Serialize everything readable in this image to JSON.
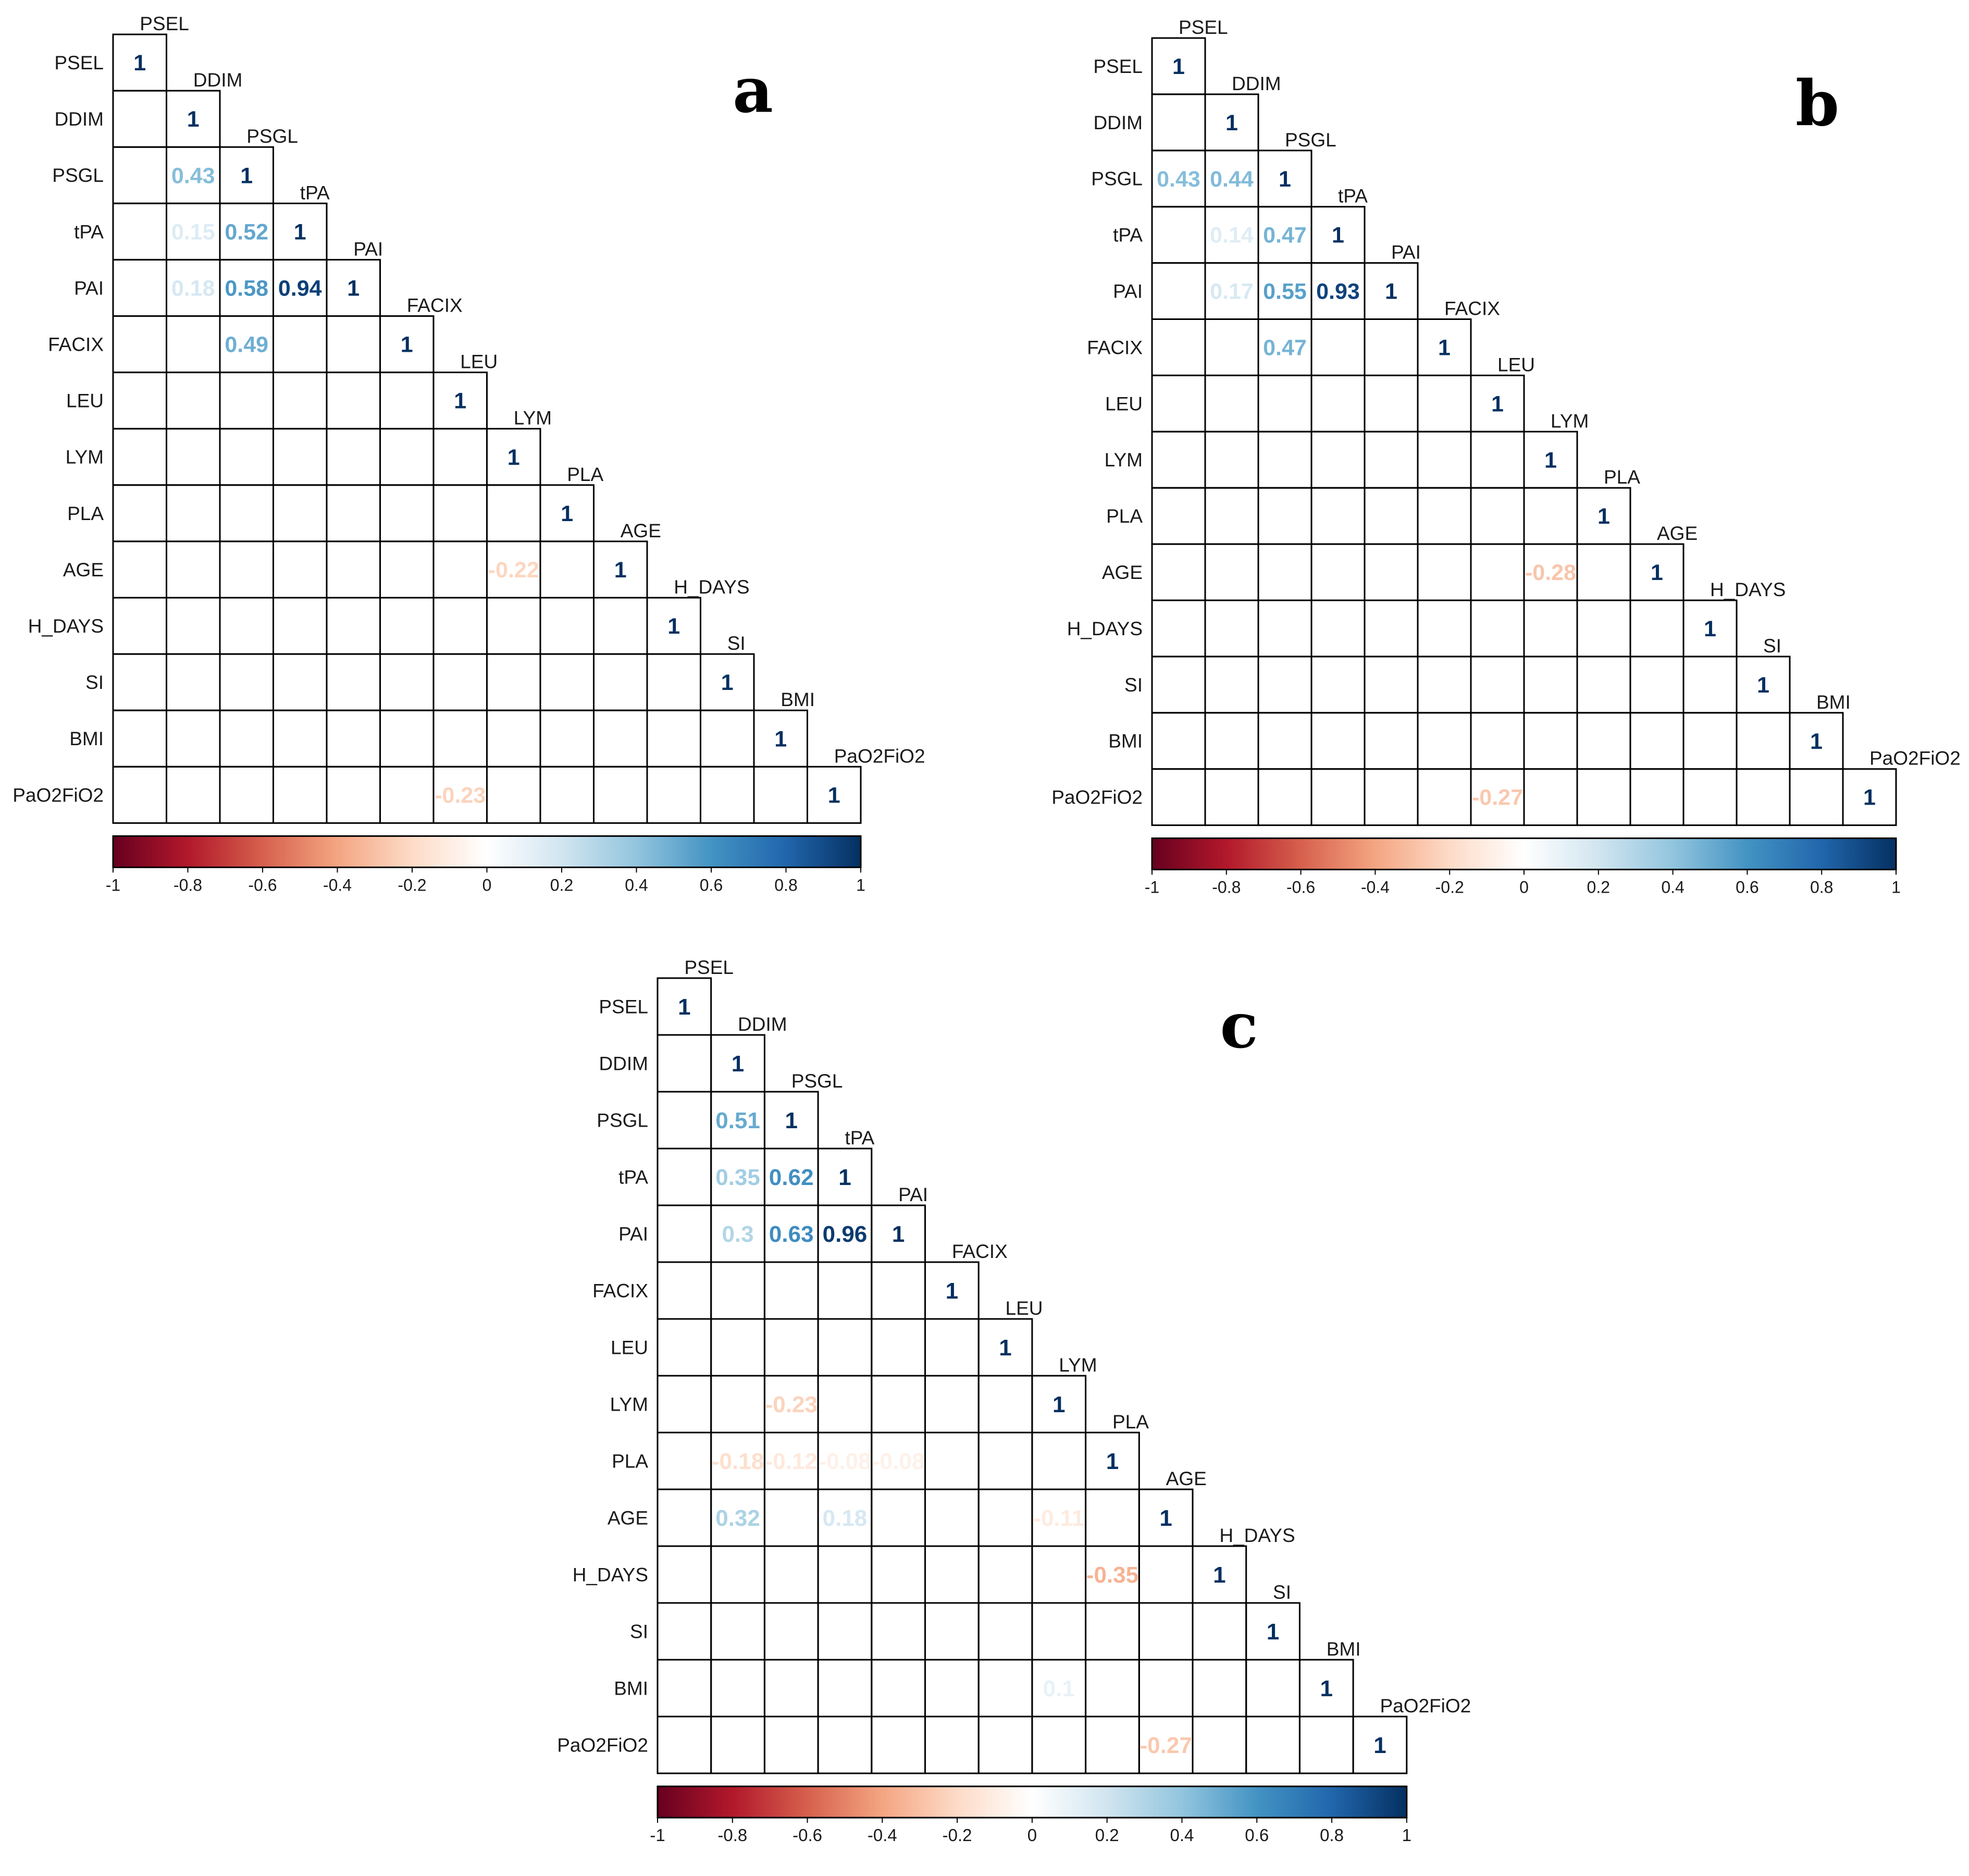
{
  "figure": {
    "description_free": true
  },
  "colors": {
    "neg_strong": "#67001f",
    "neg_mid": "#d6604d",
    "neg_light": "#fddbc7",
    "zero": "#ffffff",
    "pos_light": "#d1e5f0",
    "pos_mid": "#4393c3",
    "pos_strong": "#053061",
    "grid": "#000000"
  },
  "chart_data": [
    {
      "type": "heatmap",
      "panel": "a",
      "variables": [
        "PSEL",
        "DDIM",
        "PSGL",
        "tPA",
        "PAI",
        "FACIX",
        "LEU",
        "LYM",
        "PLA",
        "AGE",
        "H_DAYS",
        "SI",
        "BMI",
        "PaO2FiO2"
      ],
      "shown_cells": [
        {
          "row": "PSGL",
          "col": "DDIM",
          "value": 0.43,
          "label": "0.43"
        },
        {
          "row": "tPA",
          "col": "DDIM",
          "value": 0.15,
          "label": "0.15"
        },
        {
          "row": "tPA",
          "col": "PSGL",
          "value": 0.52,
          "label": "0.52"
        },
        {
          "row": "PAI",
          "col": "DDIM",
          "value": 0.18,
          "label": "0.18"
        },
        {
          "row": "PAI",
          "col": "PSGL",
          "value": 0.58,
          "label": "0.58"
        },
        {
          "row": "PAI",
          "col": "tPA",
          "value": 0.94,
          "label": "0.94"
        },
        {
          "row": "FACIX",
          "col": "PSGL",
          "value": 0.49,
          "label": "0.49"
        },
        {
          "row": "AGE",
          "col": "LYM",
          "value": -0.22,
          "label": "-0.22"
        },
        {
          "row": "PaO2FiO2",
          "col": "LEU",
          "value": -0.23,
          "label": "-0.23"
        }
      ],
      "diagonal_label": "1",
      "colorbar": {
        "range": [
          -1,
          1
        ],
        "ticks": [
          "-1",
          "-0.8",
          "-0.6",
          "-0.4",
          "-0.2",
          "0",
          "0.2",
          "0.4",
          "0.6",
          "0.8",
          "1"
        ]
      }
    },
    {
      "type": "heatmap",
      "panel": "b",
      "variables": [
        "PSEL",
        "DDIM",
        "PSGL",
        "tPA",
        "PAI",
        "FACIX",
        "LEU",
        "LYM",
        "PLA",
        "AGE",
        "H_DAYS",
        "SI",
        "BMI",
        "PaO2FiO2"
      ],
      "shown_cells": [
        {
          "row": "PSGL",
          "col": "PSEL",
          "value": 0.43,
          "label": "0.43"
        },
        {
          "row": "PSGL",
          "col": "DDIM",
          "value": 0.44,
          "label": "0.44"
        },
        {
          "row": "tPA",
          "col": "DDIM",
          "value": 0.14,
          "label": "0.14"
        },
        {
          "row": "tPA",
          "col": "PSGL",
          "value": 0.47,
          "label": "0.47"
        },
        {
          "row": "PAI",
          "col": "DDIM",
          "value": 0.17,
          "label": "0.17"
        },
        {
          "row": "PAI",
          "col": "PSGL",
          "value": 0.55,
          "label": "0.55"
        },
        {
          "row": "PAI",
          "col": "tPA",
          "value": 0.93,
          "label": "0.93"
        },
        {
          "row": "FACIX",
          "col": "PSGL",
          "value": 0.47,
          "label": "0.47"
        },
        {
          "row": "AGE",
          "col": "LYM",
          "value": -0.28,
          "label": "-0.28"
        },
        {
          "row": "PaO2FiO2",
          "col": "LEU",
          "value": -0.27,
          "label": "-0.27"
        }
      ],
      "diagonal_label": "1",
      "colorbar": {
        "range": [
          -1,
          1
        ],
        "ticks": [
          "-1",
          "-0.8",
          "-0.6",
          "-0.4",
          "-0.2",
          "0",
          "0.2",
          "0.4",
          "0.6",
          "0.8",
          "1"
        ]
      }
    },
    {
      "type": "heatmap",
      "panel": "c",
      "variables": [
        "PSEL",
        "DDIM",
        "PSGL",
        "tPA",
        "PAI",
        "FACIX",
        "LEU",
        "LYM",
        "PLA",
        "AGE",
        "H_DAYS",
        "SI",
        "BMI",
        "PaO2FiO2"
      ],
      "shown_cells": [
        {
          "row": "PSGL",
          "col": "DDIM",
          "value": 0.51,
          "label": "0.51"
        },
        {
          "row": "tPA",
          "col": "DDIM",
          "value": 0.35,
          "label": "0.35"
        },
        {
          "row": "tPA",
          "col": "PSGL",
          "value": 0.62,
          "label": "0.62"
        },
        {
          "row": "PAI",
          "col": "DDIM",
          "value": 0.3,
          "label": "0.3"
        },
        {
          "row": "PAI",
          "col": "PSGL",
          "value": 0.63,
          "label": "0.63"
        },
        {
          "row": "PAI",
          "col": "tPA",
          "value": 0.96,
          "label": "0.96"
        },
        {
          "row": "LYM",
          "col": "PSGL",
          "value": -0.23,
          "label": "-0.23"
        },
        {
          "row": "PLA",
          "col": "DDIM",
          "value": -0.18,
          "label": "-0.18"
        },
        {
          "row": "PLA",
          "col": "PSGL",
          "value": -0.12,
          "label": "-0.12"
        },
        {
          "row": "PLA",
          "col": "tPA",
          "value": -0.08,
          "label": "-0.08"
        },
        {
          "row": "PLA",
          "col": "PAI",
          "value": -0.08,
          "label": "-0.08"
        },
        {
          "row": "AGE",
          "col": "DDIM",
          "value": 0.32,
          "label": "0.32"
        },
        {
          "row": "AGE",
          "col": "tPA",
          "value": 0.18,
          "label": "0.18"
        },
        {
          "row": "AGE",
          "col": "LYM",
          "value": -0.11,
          "label": "-0.11"
        },
        {
          "row": "H_DAYS",
          "col": "PLA",
          "value": -0.35,
          "label": "-0.35"
        },
        {
          "row": "BMI",
          "col": "LYM",
          "value": 0.1,
          "label": "0.1"
        },
        {
          "row": "PaO2FiO2",
          "col": "AGE",
          "value": -0.27,
          "label": "-0.27"
        }
      ],
      "diagonal_label": "1",
      "colorbar": {
        "range": [
          -1,
          1
        ],
        "ticks": [
          "-1",
          "-0.8",
          "-0.6",
          "-0.4",
          "-0.2",
          "0",
          "0.2",
          "0.4",
          "0.6",
          "0.8",
          "1"
        ]
      }
    }
  ]
}
